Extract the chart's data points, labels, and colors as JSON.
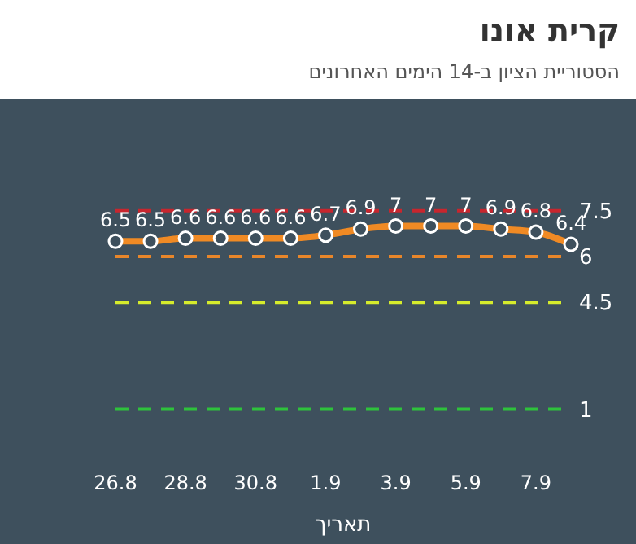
{
  "chart_data": {
    "type": "line",
    "title": "קרית אונו",
    "subtitle": "הסטוריית הציון ב-14 הימים האחרונים",
    "xlabel": "תאריך",
    "categories": [
      "26.8",
      null,
      "28.8",
      null,
      "30.8",
      null,
      "1.9",
      null,
      "3.9",
      null,
      "5.9",
      null,
      "7.9",
      null
    ],
    "series": [
      {
        "color": "#f08a24",
        "values": [
          6.5,
          6.5,
          6.6,
          6.6,
          6.6,
          6.6,
          6.7,
          6.9,
          7,
          7,
          7,
          6.9,
          6.8,
          6.4
        ]
      }
    ],
    "tick_labels": "x",
    "data_labels": true,
    "marker": "circle",
    "line_style": "solid",
    "grid": false,
    "legend": false,
    "ref_lines": [
      {
        "axis": "y",
        "value": 7.5,
        "label": "7.5",
        "color": "#c8262e",
        "line_style": "dashed"
      },
      {
        "axis": "y",
        "value": 6,
        "label": "6",
        "color": "#e8862a",
        "line_style": "dashed"
      },
      {
        "axis": "y",
        "value": 4.5,
        "label": "4.5",
        "color": "#d6ec2c",
        "line_style": "dashed"
      },
      {
        "axis": "y",
        "value": 1,
        "label": "1",
        "color": "#2ec23c",
        "line_style": "dashed"
      }
    ]
  }
}
